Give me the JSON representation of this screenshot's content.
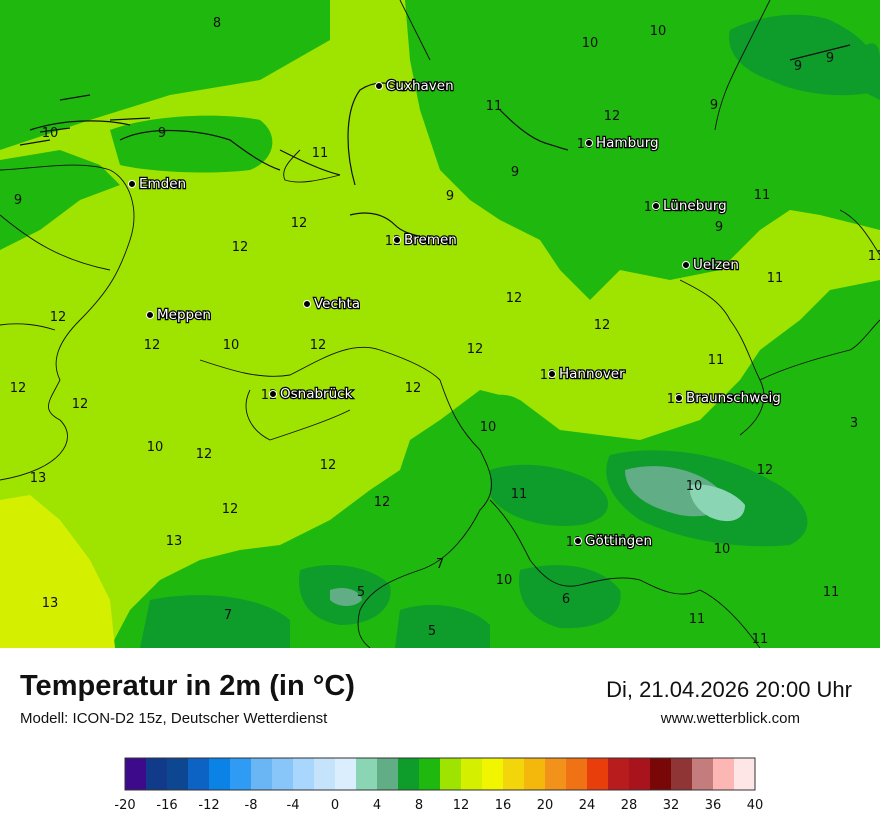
{
  "header": {
    "title": "Temperatur in 2m (in °C)",
    "model": "Modell: ICON-D2 15z, Deutscher Wetterdienst",
    "datetime": "Di, 21.04.2026 20:00 Uhr",
    "website": "www.wetterblick.com"
  },
  "cities": [
    {
      "name": "Cuxhaven",
      "value": ""
    },
    {
      "name": "Hamburg",
      "value": "10"
    },
    {
      "name": "Emden",
      "value": ""
    },
    {
      "name": "Lüneburg",
      "value": "10"
    },
    {
      "name": "Bremen",
      "value": "12"
    },
    {
      "name": "Uelzen",
      "value": ""
    },
    {
      "name": "Vechta",
      "value": ""
    },
    {
      "name": "Meppen",
      "value": ""
    },
    {
      "name": "Hannover",
      "value": "12"
    },
    {
      "name": "Osnabrück",
      "value": "12"
    },
    {
      "name": "Braunschweig",
      "value": "12"
    },
    {
      "name": "Göttingen",
      "value": "11"
    }
  ],
  "temperature_labels": [
    "8",
    "10",
    "10",
    "9",
    "9",
    "11",
    "9",
    "11",
    "9",
    "9",
    "11",
    "9",
    "11",
    "12",
    "12",
    "12",
    "12",
    "12",
    "12",
    "10",
    "12",
    "12",
    "12",
    "12",
    "10",
    "12",
    "12",
    "12",
    "13",
    "13",
    "13",
    "12",
    "12",
    "10",
    "7",
    "7",
    "5",
    "5",
    "6",
    "11",
    "10",
    "10",
    "10",
    "11",
    "11",
    "11",
    "12",
    "3",
    "10",
    "11",
    "9",
    "10",
    "9",
    "12",
    "11"
  ],
  "legend": {
    "colors": [
      "#3d0a8c",
      "#123a8a",
      "#0e4791",
      "#0c63c4",
      "#0a82e6",
      "#2f9bf5",
      "#6ab6f5",
      "#88c6fa",
      "#a8d6fc",
      "#c6e3fc",
      "#dbeefd",
      "#8ad6b4",
      "#61ad86",
      "#0e9c2b",
      "#1fb80f",
      "#9ee400",
      "#d4f000",
      "#f2f500",
      "#f2d50a",
      "#f4b80c",
      "#f2921a",
      "#ef7315",
      "#e73e0c",
      "#b81c1c",
      "#a9141c",
      "#7a0707",
      "#8f3535",
      "#c47c7c",
      "#fcb6b4",
      "#ffe6e6"
    ],
    "ticks": [
      "-20",
      "-16",
      "-12",
      "-8",
      "-4",
      "0",
      "4",
      "8",
      "12",
      "16",
      "20",
      "24",
      "28",
      "32",
      "36",
      "40"
    ]
  }
}
